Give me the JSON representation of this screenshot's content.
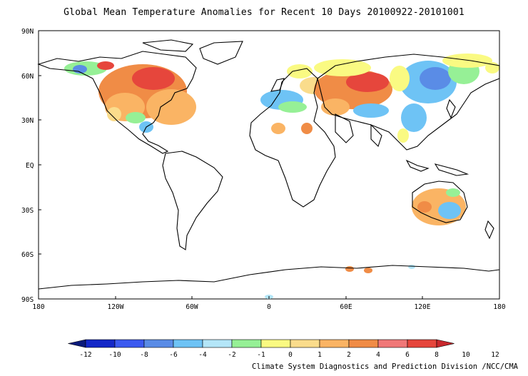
{
  "map": {
    "title": "Global Mean Temperature Anomalies for Recent 10 Days  20100922-20101001",
    "lat_labels": [
      "90N",
      "60N",
      "30N",
      "EQ",
      "30S",
      "60S",
      "90S"
    ],
    "lon_labels": [
      "180",
      "120W",
      "60W",
      "0",
      "60E",
      "120E",
      "180"
    ],
    "credit": "Climate System Diagnostics and Prediction Division /NCC/CMA"
  },
  "legend": {
    "colors": [
      "#0a1a7a",
      "#1428c8",
      "#3c5af0",
      "#5a8ce6",
      "#6ec3f5",
      "#b4e6f8",
      "#96f096",
      "#fafa82",
      "#fadc8c",
      "#fab464",
      "#f08c46",
      "#f07878",
      "#e6463c",
      "#c8282d"
    ],
    "labels": [
      "-12",
      "-10",
      "-8",
      "-6",
      "-4",
      "-2",
      "-1",
      "0",
      "1",
      "2",
      "4",
      "6",
      "8",
      "10",
      "12"
    ]
  }
}
